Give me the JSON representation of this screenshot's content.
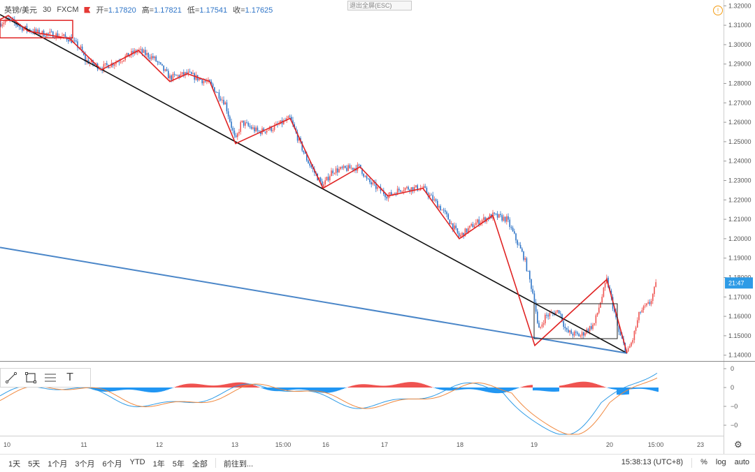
{
  "header": {
    "symbol": "英镑/美元",
    "interval": "30",
    "source": "FXCM",
    "open_label": "开=",
    "open": "1.17820",
    "high_label": "高=",
    "high": "1.17821",
    "low_label": "低=",
    "low": "1.17541",
    "close_label": "收=",
    "close": "1.17625"
  },
  "exit_button": "退出全屏(ESC)",
  "colors": {
    "up": "#ef5350",
    "down": "#2e74c7",
    "trend_black": "#111111",
    "trend_blue": "#4a86c8",
    "pattern_red": "#e02424",
    "hist_pos": "#ef5350",
    "hist_neg": "#2196f3"
  },
  "chart_data": [
    {
      "type": "candlestick",
      "title": "",
      "y_range": [
        1.137,
        1.323
      ],
      "y_ticks": [
        "1.32000",
        "1.31000",
        "1.30000",
        "1.29000",
        "1.28000",
        "1.27000",
        "1.26000",
        "1.25000",
        "1.24000",
        "1.23000",
        "1.22000",
        "1.21000",
        "1.20000",
        "1.19000",
        "1.18000",
        "1.17000",
        "1.16000",
        "1.15000",
        "1.14000"
      ],
      "x_ticks": [
        "10",
        "11",
        "12",
        "13",
        "15:00",
        "16",
        "17",
        "18",
        "19",
        "20",
        "15:00",
        "23"
      ],
      "last_price_label": "21:47",
      "price_path": [
        [
          0,
          1.311
        ],
        [
          12,
          1.313
        ],
        [
          30,
          1.309
        ],
        [
          55,
          1.306
        ],
        [
          80,
          1.305
        ],
        [
          100,
          1.303
        ],
        [
          115,
          1.298
        ],
        [
          122,
          1.292
        ],
        [
          145,
          1.288
        ],
        [
          165,
          1.291
        ],
        [
          198,
          1.297
        ],
        [
          220,
          1.293
        ],
        [
          243,
          1.283
        ],
        [
          268,
          1.285
        ],
        [
          300,
          1.28
        ],
        [
          322,
          1.27
        ],
        [
          337,
          1.25
        ],
        [
          345,
          1.26
        ],
        [
          370,
          1.255
        ],
        [
          390,
          1.257
        ],
        [
          415,
          1.262
        ],
        [
          428,
          1.25
        ],
        [
          440,
          1.24
        ],
        [
          462,
          1.227
        ],
        [
          475,
          1.235
        ],
        [
          515,
          1.237
        ],
        [
          525,
          1.23
        ],
        [
          555,
          1.222
        ],
        [
          575,
          1.226
        ],
        [
          605,
          1.226
        ],
        [
          630,
          1.216
        ],
        [
          640,
          1.211
        ],
        [
          657,
          1.201
        ],
        [
          680,
          1.208
        ],
        [
          705,
          1.212
        ],
        [
          725,
          1.21
        ],
        [
          740,
          1.198
        ],
        [
          750,
          1.19
        ],
        [
          765,
          1.168
        ],
        [
          770,
          1.152
        ],
        [
          780,
          1.16
        ],
        [
          800,
          1.163
        ],
        [
          810,
          1.152
        ],
        [
          830,
          1.15
        ],
        [
          850,
          1.156
        ],
        [
          868,
          1.179
        ],
        [
          875,
          1.168
        ],
        [
          885,
          1.152
        ],
        [
          897,
          1.141
        ],
        [
          905,
          1.148
        ],
        [
          915,
          1.162
        ],
        [
          930,
          1.167
        ],
        [
          940,
          1.178
        ]
      ]
    },
    {
      "type": "histogram_with_lines",
      "y_ticks": [
        "0",
        "0",
        "−0",
        "−0"
      ]
    }
  ],
  "toolbar": {
    "tools": [
      "line-tool-icon",
      "rect-tool-icon",
      "fib-tool-icon",
      "text-tool-icon"
    ],
    "text_tool_label": "T"
  },
  "bottom_bar": {
    "ranges": [
      "1天",
      "5天",
      "1个月",
      "3个月",
      "6个月",
      "YTD",
      "1年",
      "5年",
      "全部"
    ],
    "goto": "前往到...",
    "time": "15:38:13 (UTC+8)",
    "percent": "%",
    "log": "log",
    "auto": "auto"
  }
}
